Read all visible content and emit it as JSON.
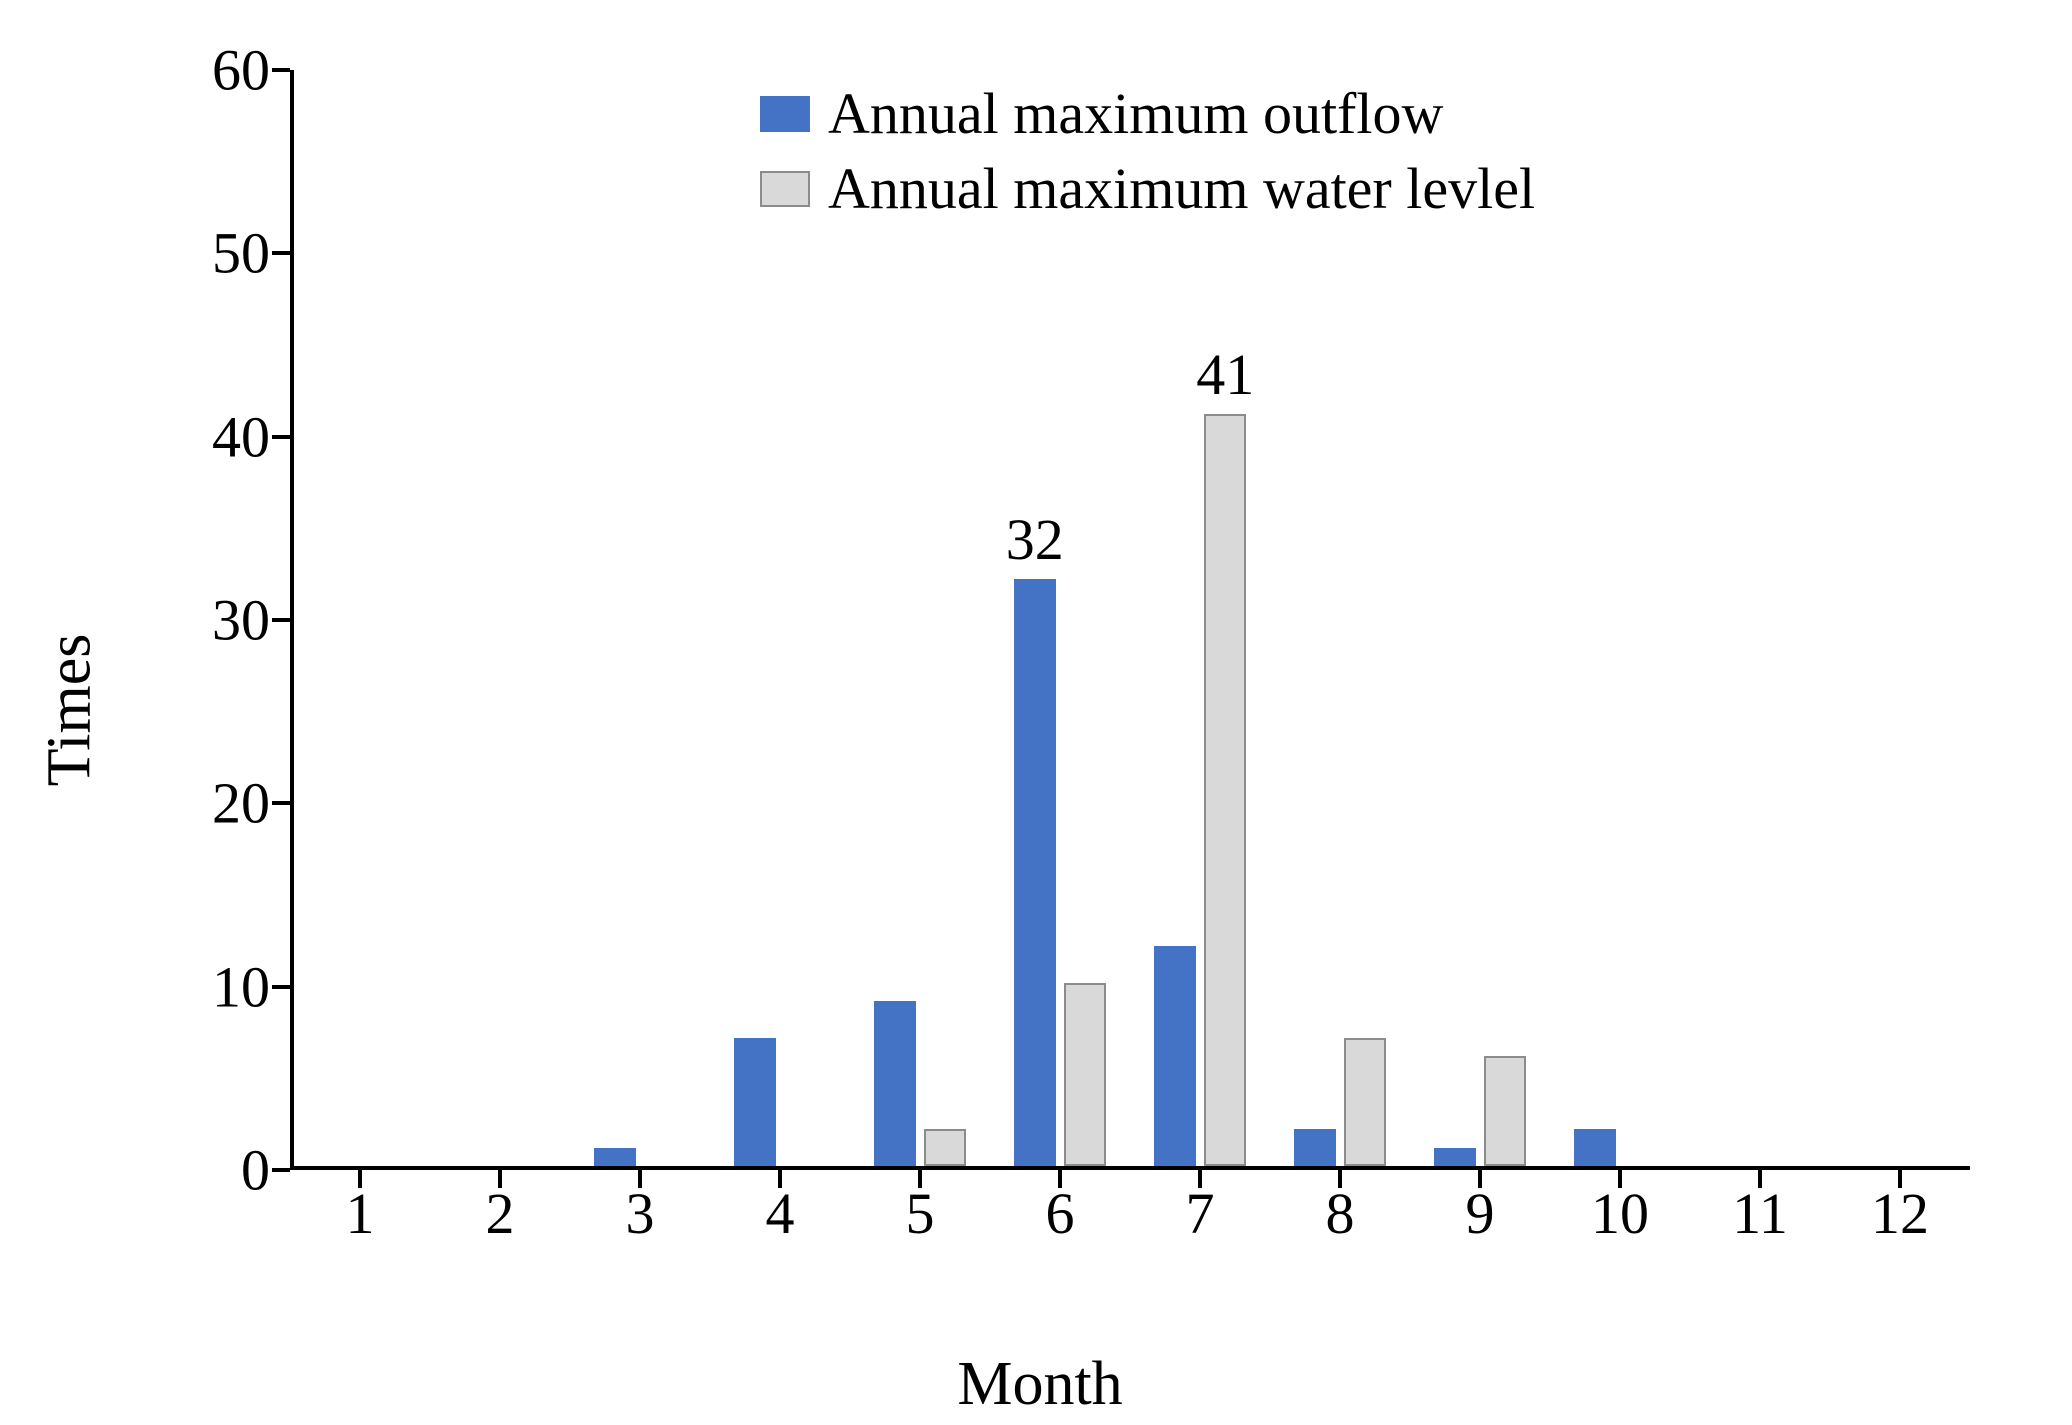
{
  "chart": {
    "type": "bar",
    "background_color": "#ffffff",
    "axis_color": "#000000",
    "axis_line_width": 4,
    "font_family": "Times New Roman",
    "ylabel": "Times",
    "xlabel": "Month",
    "label_fontsize": 62,
    "tick_fontsize": 58,
    "ylim": [
      0,
      60
    ],
    "ytick_step": 10,
    "yticks": [
      0,
      10,
      20,
      30,
      40,
      50,
      60
    ],
    "xlim": [
      1,
      12
    ],
    "xticks": [
      1,
      2,
      3,
      4,
      5,
      6,
      7,
      8,
      9,
      10,
      11,
      12
    ],
    "bar_width": 0.3,
    "bar_gap": 0.06,
    "series": [
      {
        "name": "Annual maximum outflow",
        "color": "#4472c4",
        "border_color": "#4472c4",
        "values": [
          0,
          0,
          1,
          7,
          9,
          32,
          12,
          2,
          1,
          2,
          0,
          0
        ],
        "value_labels": {
          "6": "32"
        }
      },
      {
        "name": "Annual maximum water levlel",
        "color": "#d9d9d9",
        "border_color": "#8c8c8c",
        "values": [
          0,
          0,
          0,
          0,
          2,
          10,
          41,
          7,
          6,
          0,
          0,
          0
        ],
        "value_labels": {
          "7": "41"
        }
      }
    ],
    "legend": {
      "position": "top-center",
      "swatch_width": 50,
      "swatch_height": 36,
      "fontsize": 58
    }
  }
}
